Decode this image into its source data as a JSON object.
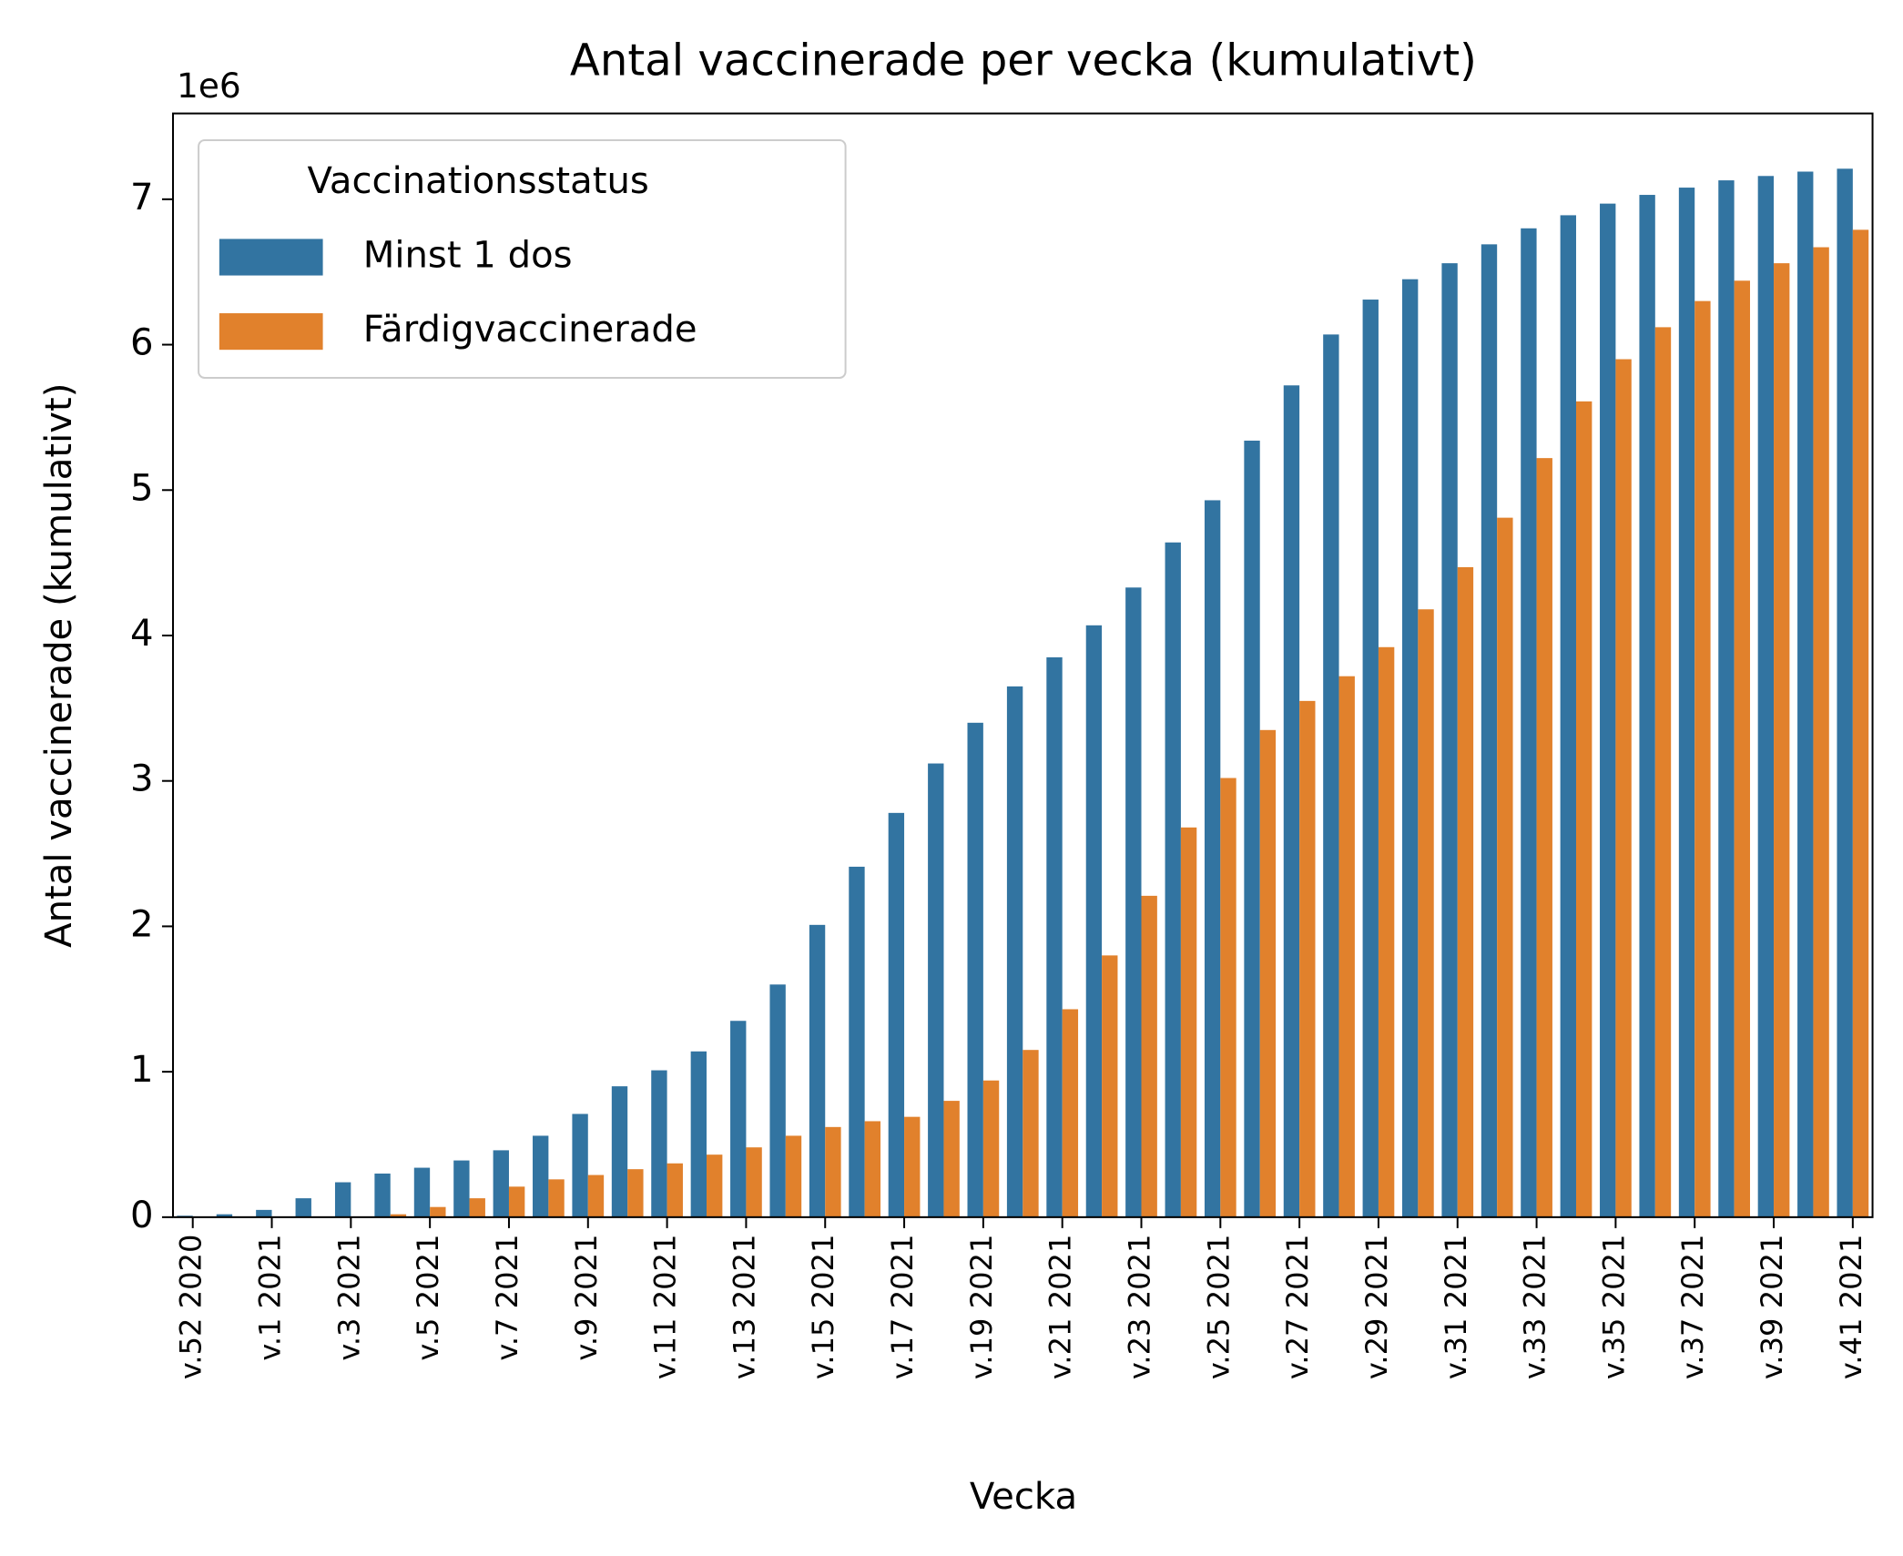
{
  "chart_data": {
    "type": "bar",
    "title": "Antal vaccinerade per vecka (kumulativt)",
    "x_label": "Vecka",
    "y_label": "Antal vaccinerade (kumulativt)",
    "y_offset_label": "1e6",
    "legend_title": "Vaccinationsstatus",
    "legend": "upper left",
    "categories": [
      "v.52 2020",
      null,
      "v.1 2021",
      null,
      "v.3 2021",
      null,
      "v.5 2021",
      null,
      "v.7 2021",
      null,
      "v.9 2021",
      null,
      "v.11 2021",
      null,
      "v.13 2021",
      null,
      "v.15 2021",
      null,
      "v.17 2021",
      null,
      "v.19 2021",
      null,
      "v.21 2021",
      null,
      "v.23 2021",
      null,
      "v.25 2021",
      null,
      "v.27 2021",
      null,
      "v.29 2021",
      null,
      "v.31 2021",
      null,
      "v.33 2021",
      null,
      "v.35 2021",
      null,
      "v.37 2021",
      null,
      "v.39 2021",
      null,
      "v.41 2021"
    ],
    "series": [
      {
        "name": "Minst 1 dos",
        "color": "#3274a1",
        "values": [
          0.01,
          0.02,
          0.05,
          0.13,
          0.24,
          0.3,
          0.34,
          0.39,
          0.46,
          0.56,
          0.71,
          0.9,
          1.01,
          1.14,
          1.35,
          1.6,
          2.01,
          2.41,
          2.78,
          3.12,
          3.4,
          3.65,
          3.85,
          4.07,
          4.33,
          4.64,
          4.93,
          5.34,
          5.72,
          6.07,
          6.31,
          6.45,
          6.56,
          6.69,
          6.8,
          6.89,
          6.97,
          7.03,
          7.08,
          7.13,
          7.16,
          7.19,
          7.21
        ]
      },
      {
        "name": "Färdigvaccinerade",
        "color": "#e1812c",
        "values": [
          0,
          0,
          0,
          0,
          0.005,
          0.02,
          0.07,
          0.13,
          0.21,
          0.26,
          0.29,
          0.33,
          0.37,
          0.43,
          0.48,
          0.56,
          0.62,
          0.66,
          0.69,
          0.8,
          0.94,
          1.15,
          1.43,
          1.8,
          2.21,
          2.68,
          3.02,
          3.35,
          3.55,
          3.72,
          3.92,
          4.18,
          4.47,
          4.81,
          5.22,
          5.61,
          5.9,
          6.12,
          6.3,
          6.44,
          6.56,
          6.67,
          6.79
        ]
      }
    ],
    "ylim": [
      0,
      7.59
    ],
    "yticks": [
      0,
      1,
      2,
      3,
      4,
      5,
      6,
      7
    ]
  }
}
